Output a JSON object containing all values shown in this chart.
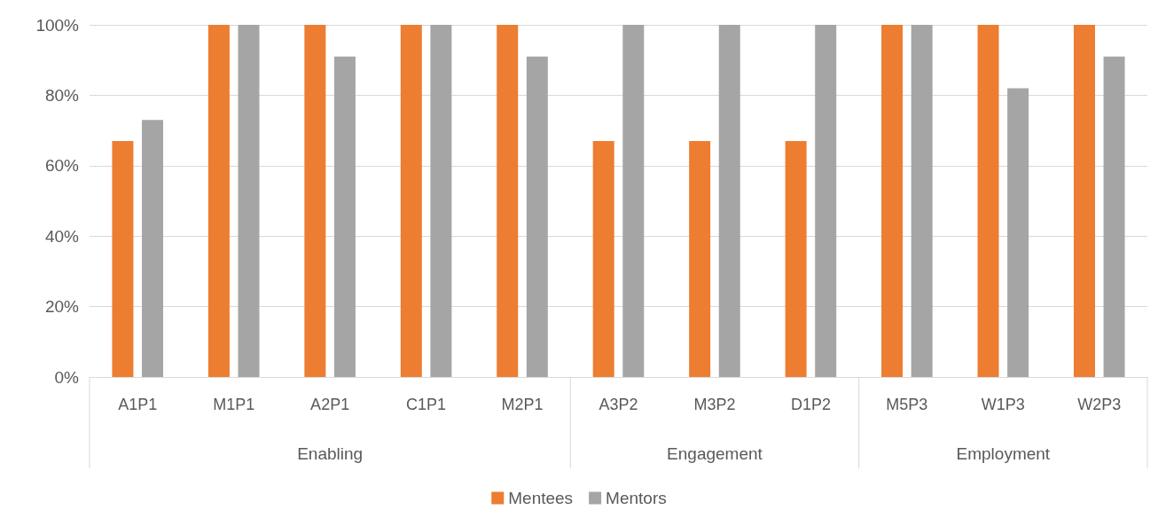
{
  "chart_data": {
    "type": "bar",
    "categories": [
      "A1P1",
      "M1P1",
      "A2P1",
      "C1P1",
      "M2P1",
      "A3P2",
      "M3P2",
      "D1P2",
      "M5P3",
      "W1P3",
      "W2P3"
    ],
    "series": [
      {
        "name": "Mentees",
        "color": "#ed7d31",
        "values": [
          67,
          100,
          100,
          100,
          100,
          67,
          67,
          67,
          100,
          100,
          100
        ]
      },
      {
        "name": "Mentors",
        "color": "#a5a5a5",
        "values": [
          73,
          100,
          91,
          100,
          91,
          100,
          100,
          100,
          100,
          82,
          91
        ]
      }
    ],
    "ylim": [
      0,
      100
    ],
    "yticks": [
      {
        "value": 0,
        "label": "0%"
      },
      {
        "value": 20,
        "label": "20%"
      },
      {
        "value": 40,
        "label": "40%"
      },
      {
        "value": 60,
        "label": "60%"
      },
      {
        "value": 80,
        "label": "80%"
      },
      {
        "value": 100,
        "label": "100%"
      }
    ],
    "annotations": [
      "Enabling",
      "Engagement",
      "Employment"
    ],
    "grid": "y",
    "legend": "bottom"
  }
}
